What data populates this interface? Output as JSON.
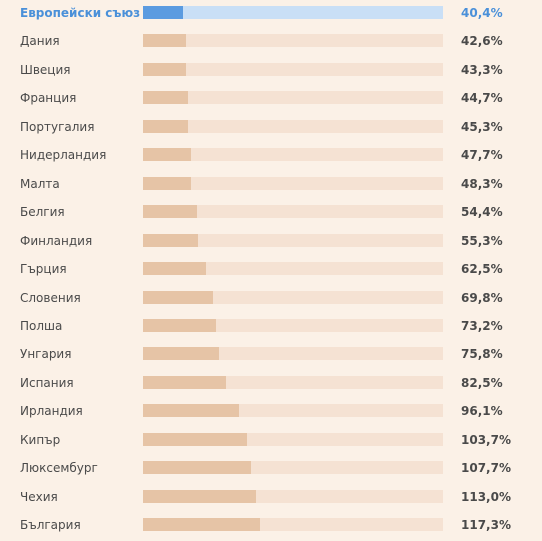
{
  "chart_data": {
    "type": "bar",
    "orientation": "horizontal",
    "title": "",
    "xlabel": "",
    "ylabel": "",
    "xlim": [
      0,
      300
    ],
    "grid": false,
    "legend": "none",
    "highlight_category": "Европейски съюз *",
    "colors": {
      "highlight_fill": "#5b9be0",
      "highlight_track": "#c9dff6",
      "highlight_text": "#4a90d9",
      "bar_fill": "#e6c4a6",
      "bar_track": "#f5e2d3",
      "background": "#fbf1e7"
    },
    "categories": [
      "Европейски съюз *",
      "Дания",
      "Швеция",
      "Франция",
      "Португалия",
      "Нидерландия",
      "Малта",
      "Белгия",
      "Финландия",
      "Гърция",
      "Словения",
      "Полша",
      "Унгария",
      "Испания",
      "Ирландия",
      "Кипър",
      "Люксембург",
      "Чехия",
      "България"
    ],
    "values": [
      40.4,
      42.6,
      43.3,
      44.7,
      45.3,
      47.7,
      48.3,
      54.4,
      55.3,
      62.5,
      69.8,
      73.2,
      75.8,
      82.5,
      96.1,
      103.7,
      107.7,
      113.0,
      117.3
    ],
    "value_labels": [
      "40,4%",
      "42,6%",
      "43,3%",
      "44,7%",
      "45,3%",
      "47,7%",
      "48,3%",
      "54,4%",
      "55,3%",
      "62,5%",
      "69,8%",
      "73,2%",
      "75,8%",
      "82,5%",
      "96,1%",
      "103,7%",
      "107,7%",
      "113,0%",
      "117,3%"
    ]
  }
}
